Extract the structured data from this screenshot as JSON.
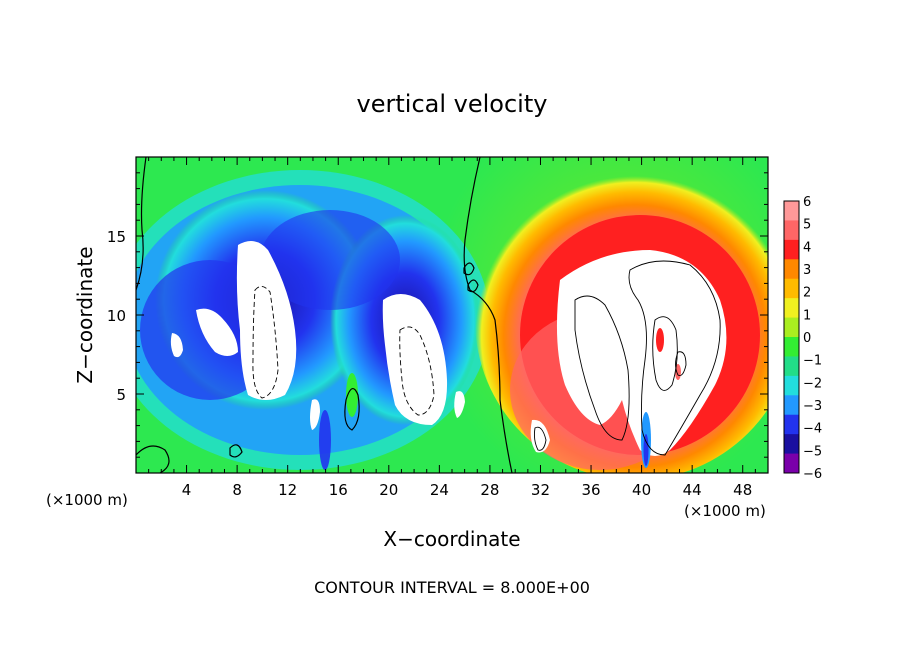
{
  "chart_data": {
    "type": "heatmap",
    "title": "vertical velocity",
    "xlabel": "X−coordinate",
    "ylabel": "Z−coordinate",
    "x_unit_left": "(×1000 m)",
    "x_unit_right": "(×1000 m)",
    "footer": "CONTOUR INTERVAL = 8.000E+00",
    "xlim": [
      0,
      50
    ],
    "ylim": [
      0,
      20
    ],
    "x_ticks": [
      "4",
      "8",
      "12",
      "16",
      "20",
      "24",
      "28",
      "32",
      "36",
      "40",
      "44",
      "48"
    ],
    "x_tick_values": [
      4,
      8,
      12,
      16,
      20,
      24,
      28,
      32,
      36,
      40,
      44,
      48
    ],
    "y_ticks": [
      "5",
      "10",
      "15"
    ],
    "y_tick_values": [
      5,
      10,
      15
    ],
    "colorbar": {
      "labels": [
        "6",
        "5",
        "4",
        "3",
        "2",
        "1",
        "0",
        "−1",
        "−2",
        "−3",
        "−4",
        "−5",
        "−6"
      ],
      "values": [
        6,
        5,
        4,
        3,
        2,
        1,
        0,
        -1,
        -2,
        -3,
        -4,
        -5,
        -6
      ],
      "colors": [
        "#ff9999",
        "#ff6666",
        "#ff2020",
        "#ff8800",
        "#ffbb00",
        "#f0f020",
        "#aaee20",
        "#33ee33",
        "#22dd88",
        "#22dddd",
        "#2299ff",
        "#2233ee",
        "#1a10a0",
        "#7a00aa"
      ]
    },
    "features": [
      {
        "name": "updraft-right",
        "x": 38,
        "z": 8,
        "w": 12
      },
      {
        "name": "downdraft-left-a",
        "x": 9.5,
        "z": 9,
        "w": -12
      },
      {
        "name": "downdraft-left-b",
        "x": 21.5,
        "z": 8.5,
        "w": -12
      }
    ]
  }
}
